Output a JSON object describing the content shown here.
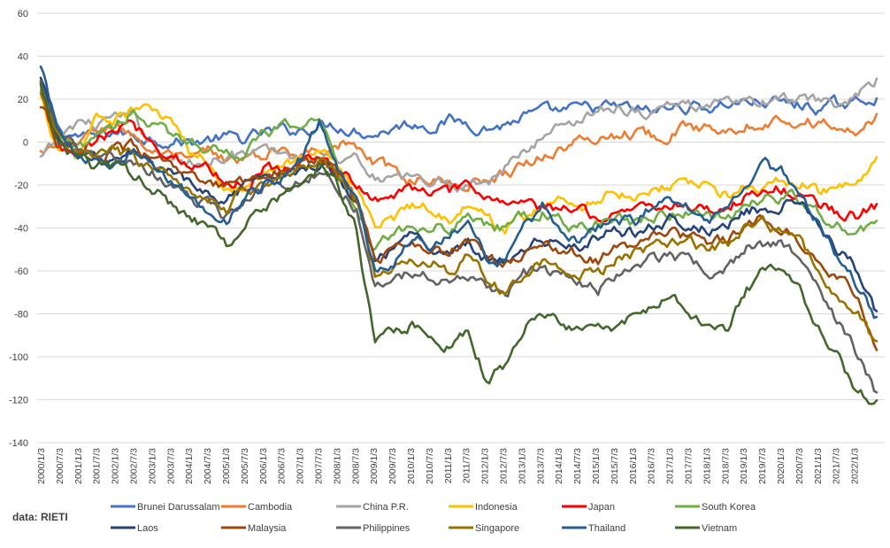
{
  "chart_data": {
    "type": "line",
    "title": "",
    "xlabel": "",
    "ylabel": "",
    "ylim": [
      -140,
      60
    ],
    "yticks": [
      -140,
      -120,
      -100,
      -80,
      -60,
      -40,
      -20,
      0,
      20,
      40,
      60
    ],
    "grid": "horizontal",
    "legend_position": "bottom",
    "source_label": "data: RIETI",
    "x_tick_labels": [
      "2000/1/3",
      "2000/7/3",
      "2001/1/3",
      "2001/7/3",
      "2002/1/3",
      "2002/7/3",
      "2003/1/3",
      "2003/7/3",
      "2004/1/3",
      "2004/7/3",
      "2005/1/3",
      "2005/7/3",
      "2006/1/3",
      "2006/7/3",
      "2007/1/3",
      "2007/7/3",
      "2008/1/3",
      "2008/7/3",
      "2009/1/3",
      "2009/7/3",
      "2010/1/3",
      "2010/7/3",
      "2011/1/3",
      "2011/7/3",
      "2012/1/3",
      "2012/7/3",
      "2013/1/3",
      "2013/7/3",
      "2014/1/3",
      "2014/7/3",
      "2015/1/3",
      "2015/7/3",
      "2016/1/3",
      "2016/7/3",
      "2017/1/3",
      "2017/7/3",
      "2018/1/3",
      "2018/7/3",
      "2019/1/3",
      "2019/7/3",
      "2020/1/3",
      "2020/7/3",
      "2021/1/3",
      "2021/7/3",
      "2022/1/3"
    ],
    "x": [
      "2000/1/3",
      "2000/7/3",
      "2001/1/3",
      "2001/7/3",
      "2002/1/3",
      "2002/7/3",
      "2003/1/3",
      "2003/7/3",
      "2004/1/3",
      "2004/7/3",
      "2005/1/3",
      "2005/7/3",
      "2006/1/3",
      "2006/7/3",
      "2007/1/3",
      "2007/7/3",
      "2008/1/3",
      "2008/7/3",
      "2009/1/3",
      "2009/7/3",
      "2010/1/3",
      "2010/7/3",
      "2011/1/3",
      "2011/7/3",
      "2012/1/3",
      "2012/7/3",
      "2013/1/3",
      "2013/7/3",
      "2014/1/3",
      "2014/7/3",
      "2015/1/3",
      "2015/7/3",
      "2016/1/3",
      "2016/7/3",
      "2017/1/3",
      "2017/7/3",
      "2018/1/3",
      "2018/7/3",
      "2019/1/3",
      "2019/7/3",
      "2020/1/3",
      "2020/7/3",
      "2021/1/3",
      "2021/7/3",
      "2022/1/3",
      "2022/7/3"
    ],
    "series": [
      {
        "name": "Brunei Darussalam",
        "color": "#4472C4",
        "values": [
          28,
          5,
          3,
          2,
          5,
          3,
          2,
          1,
          0,
          1,
          2,
          1,
          4,
          5,
          6,
          8,
          8,
          6,
          4,
          7,
          9,
          8,
          10,
          9,
          7,
          8,
          12,
          13,
          14,
          15,
          16,
          16,
          15,
          14,
          16,
          17,
          16,
          18,
          19,
          19,
          18,
          17,
          16,
          17,
          18,
          22
        ]
      },
      {
        "name": "Cambodia",
        "color": "#ED7D31",
        "values": [
          -5,
          -3,
          0,
          5,
          8,
          4,
          -5,
          -8,
          -10,
          -5,
          -8,
          -9,
          -6,
          -4,
          -5,
          -2,
          0,
          -3,
          -10,
          -14,
          -18,
          -16,
          -20,
          -19,
          -17,
          -14,
          -10,
          -6,
          -3,
          0,
          2,
          4,
          5,
          3,
          5,
          7,
          6,
          8,
          9,
          10,
          11,
          10,
          9,
          8,
          2,
          12
        ]
      },
      {
        "name": "China P.R.",
        "color": "#A5A5A5",
        "values": [
          -8,
          0,
          10,
          8,
          12,
          10,
          0,
          -8,
          -10,
          -8,
          -5,
          -6,
          -5,
          -5,
          -8,
          -5,
          -8,
          -5,
          -15,
          -18,
          -18,
          -17,
          -20,
          -19,
          -18,
          -12,
          -5,
          2,
          8,
          12,
          15,
          17,
          15,
          14,
          18,
          17,
          18,
          17,
          19,
          18,
          20,
          19,
          17,
          18,
          20,
          30
        ]
      },
      {
        "name": "Indonesia",
        "color": "#FFC000",
        "values": [
          20,
          -5,
          -8,
          12,
          10,
          15,
          14,
          10,
          -5,
          -10,
          -20,
          -20,
          -12,
          -10,
          -8,
          -4,
          -12,
          -20,
          -40,
          -35,
          -30,
          -30,
          -35,
          -30,
          -35,
          -40,
          -35,
          -30,
          -28,
          -30,
          -25,
          -22,
          -25,
          -20,
          -20,
          -18,
          -22,
          -25,
          -20,
          -22,
          -18,
          -20,
          -24,
          -22,
          -20,
          -10
        ]
      },
      {
        "name": "Japan",
        "color": "#FF0000",
        "values": [
          25,
          -5,
          -8,
          0,
          5,
          8,
          0,
          -5,
          -10,
          -12,
          -18,
          -20,
          -12,
          -12,
          -8,
          -6,
          -12,
          -22,
          -25,
          -24,
          -22,
          -22,
          -24,
          -22,
          -25,
          -28,
          -28,
          -32,
          -32,
          -30,
          -35,
          -32,
          -30,
          -30,
          -28,
          -30,
          -32,
          -30,
          -25,
          -22,
          -22,
          -25,
          -30,
          -33,
          -34,
          -30
        ]
      },
      {
        "name": "South Korea",
        "color": "#70AD47",
        "values": [
          22,
          0,
          -5,
          5,
          8,
          15,
          8,
          2,
          2,
          -2,
          -4,
          -6,
          4,
          6,
          8,
          12,
          -12,
          -30,
          -50,
          -42,
          -38,
          -38,
          -40,
          -35,
          -38,
          -40,
          -35,
          -32,
          -38,
          -40,
          -38,
          -35,
          -38,
          -35,
          -32,
          -34,
          -36,
          -35,
          -28,
          -26,
          -25,
          -28,
          -35,
          -38,
          -42,
          -40
        ]
      },
      {
        "name": "Laos",
        "color": "#264478",
        "values": [
          32,
          0,
          -5,
          -10,
          -8,
          -5,
          -10,
          -15,
          -20,
          -25,
          -28,
          -22,
          -20,
          -15,
          -12,
          -10,
          -15,
          -25,
          -55,
          -50,
          -45,
          -48,
          -50,
          -45,
          -55,
          -55,
          -50,
          -45,
          -48,
          -50,
          -45,
          -40,
          -42,
          -38,
          -35,
          -38,
          -40,
          -38,
          -32,
          -30,
          -28,
          -30,
          -40,
          -50,
          -60,
          -80
        ]
      },
      {
        "name": "Malaysia",
        "color": "#9E480E",
        "values": [
          18,
          -2,
          -5,
          -8,
          -5,
          -3,
          -8,
          -12,
          -18,
          -20,
          -22,
          -18,
          -15,
          -12,
          -10,
          -8,
          -15,
          -28,
          -55,
          -50,
          -48,
          -48,
          -50,
          -45,
          -55,
          -58,
          -50,
          -48,
          -50,
          -52,
          -55,
          -50,
          -48,
          -45,
          -42,
          -45,
          -48,
          -46,
          -38,
          -35,
          -38,
          -45,
          -55,
          -62,
          -75,
          -100
        ]
      },
      {
        "name": "Philippines",
        "color": "#636363",
        "values": [
          30,
          3,
          -3,
          -8,
          -8,
          -12,
          -15,
          -20,
          -25,
          -30,
          -35,
          -28,
          -22,
          -20,
          -18,
          -15,
          -20,
          -30,
          -68,
          -65,
          -60,
          -62,
          -65,
          -62,
          -68,
          -70,
          -62,
          -60,
          -62,
          -65,
          -68,
          -60,
          -58,
          -55,
          -52,
          -55,
          -60,
          -58,
          -50,
          -48,
          -48,
          -55,
          -70,
          -85,
          -100,
          -118
        ]
      },
      {
        "name": "Singapore",
        "color": "#997300",
        "values": [
          24,
          0,
          -5,
          -5,
          -5,
          -8,
          -12,
          -18,
          -20,
          -25,
          -30,
          -22,
          -20,
          -15,
          -12,
          -8,
          -15,
          -28,
          -62,
          -60,
          -55,
          -55,
          -60,
          -52,
          -65,
          -70,
          -60,
          -55,
          -58,
          -60,
          -62,
          -55,
          -52,
          -48,
          -45,
          -48,
          -52,
          -48,
          -40,
          -38,
          -42,
          -48,
          -62,
          -72,
          -80,
          -95
        ]
      },
      {
        "name": "Thailand",
        "color": "#255E91",
        "values": [
          36,
          5,
          -5,
          -10,
          -8,
          -5,
          -10,
          -18,
          -25,
          -30,
          -35,
          -28,
          -20,
          -15,
          -8,
          10,
          -10,
          -30,
          -60,
          -55,
          -45,
          -48,
          -45,
          -35,
          -55,
          -58,
          -40,
          -30,
          -42,
          -45,
          -40,
          -35,
          -38,
          -30,
          -28,
          -32,
          -35,
          -30,
          -18,
          -10,
          -15,
          -25,
          -40,
          -55,
          -68,
          -82
        ]
      },
      {
        "name": "Vietnam",
        "color": "#43682B",
        "values": [
          28,
          -2,
          -8,
          -12,
          -12,
          -15,
          -20,
          -28,
          -35,
          -40,
          -48,
          -35,
          -30,
          -25,
          -18,
          -12,
          -20,
          -40,
          -95,
          -90,
          -85,
          -88,
          -95,
          -90,
          -110,
          -105,
          -85,
          -80,
          -85,
          -90,
          -88,
          -85,
          -80,
          -75,
          -72,
          -78,
          -85,
          -90,
          -68,
          -60,
          -62,
          -70,
          -88,
          -100,
          -118,
          -122
        ]
      }
    ]
  }
}
